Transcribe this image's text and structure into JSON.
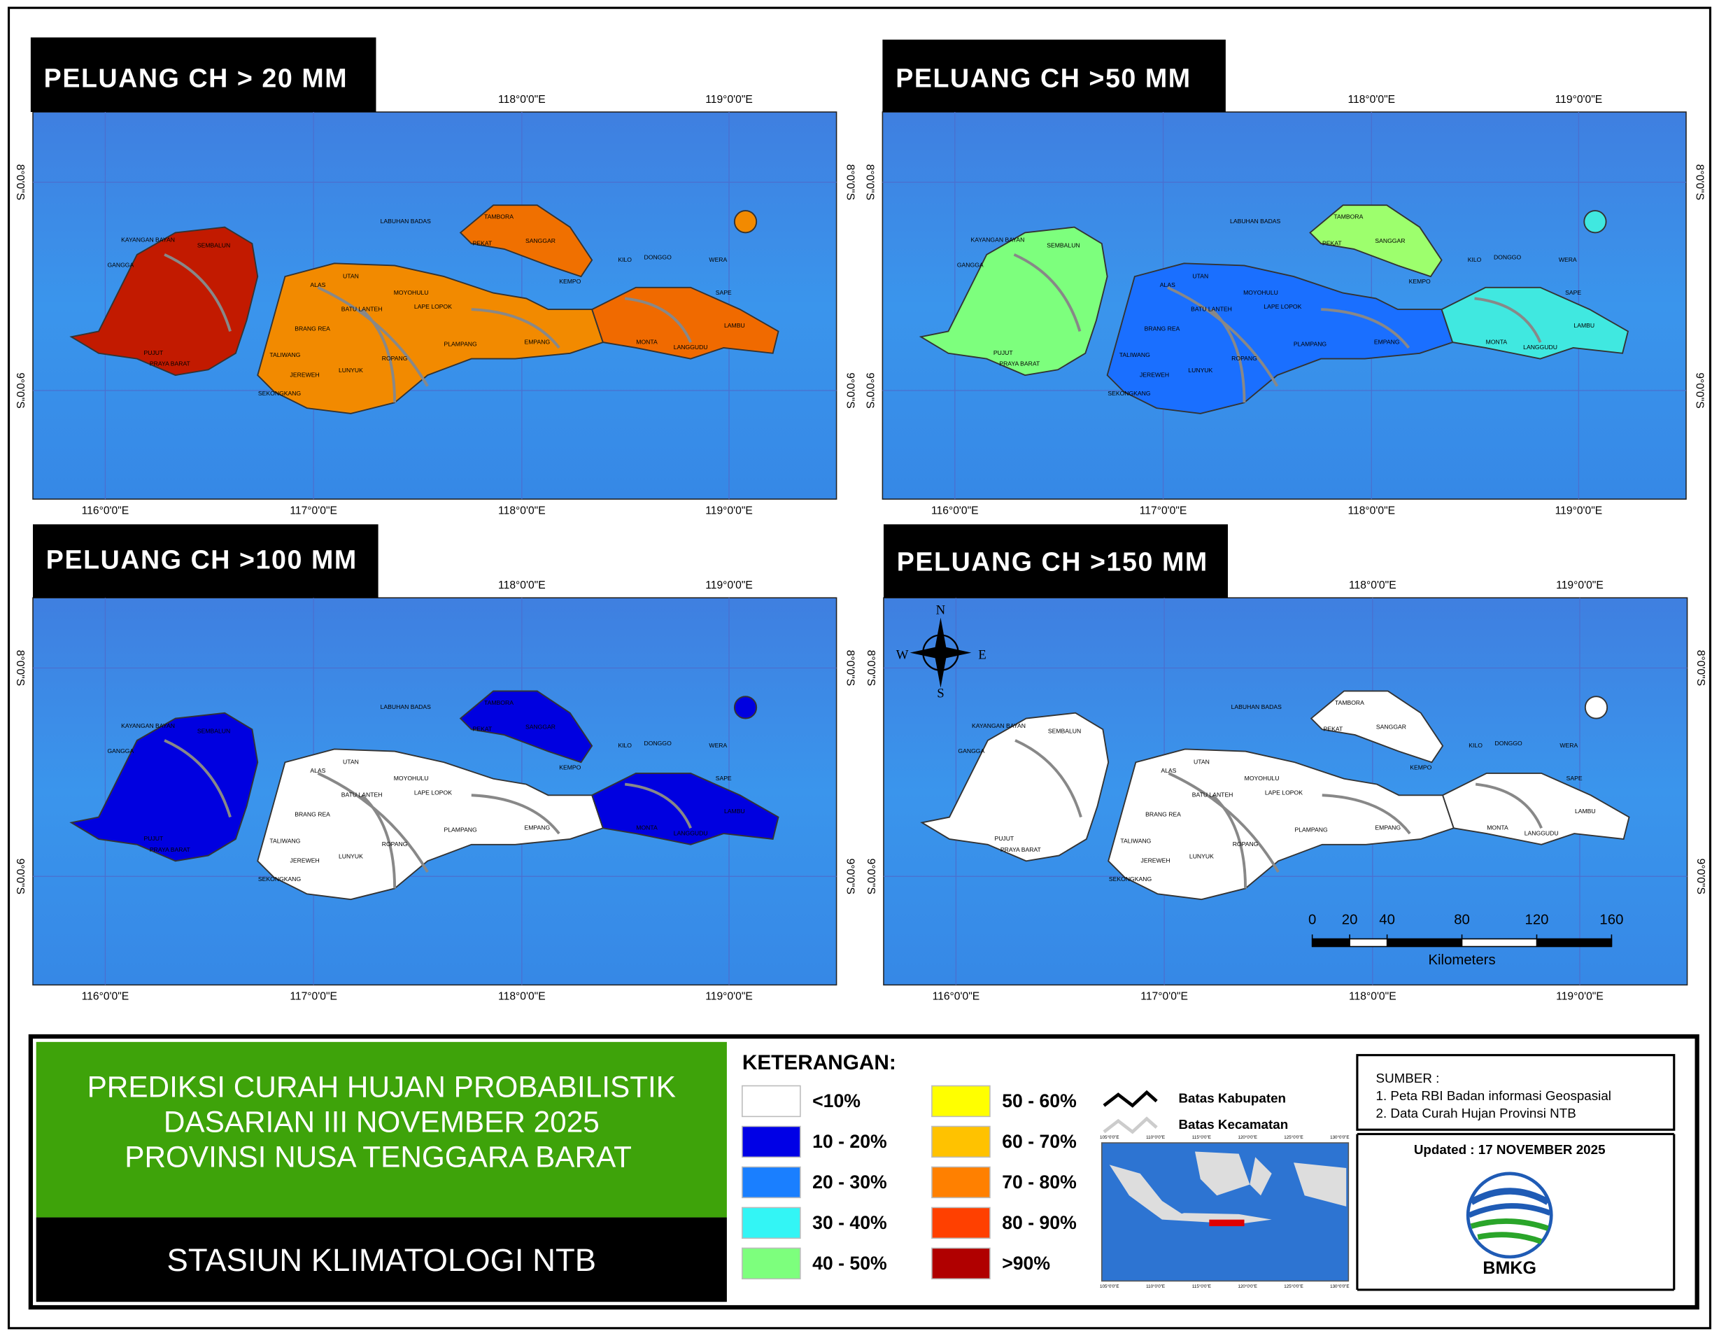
{
  "panels": [
    {
      "title": "PELUANG CH > 20 MM",
      "colors": {
        "lombok": "#c21a00",
        "west": "#f28a00",
        "east": "#f06a00",
        "peninsula": "#f07000",
        "wera": "#f28a00"
      }
    },
    {
      "title": "PELUANG CH >50 MM",
      "colors": {
        "lombok": "#7dff7d",
        "west": "#1a6fff",
        "east": "#40e8e0",
        "peninsula": "#9dff6d",
        "wera": "#40e8e0"
      }
    },
    {
      "title": "PELUANG CH >100 MM",
      "colors": {
        "lombok": "#0000e0",
        "west": "#ffffff",
        "east": "#0000e0",
        "peninsula": "#0000e0",
        "wera": "#0000e0"
      }
    },
    {
      "title": "PELUANG CH >150 MM",
      "colors": {
        "lombok": "#ffffff",
        "west": "#ffffff",
        "east": "#ffffff",
        "peninsula": "#ffffff",
        "wera": "#ffffff"
      }
    }
  ],
  "lon_labels": [
    "116°0'0\"E",
    "117°0'0\"E",
    "118°0'0\"E",
    "119°0'0\"E"
  ],
  "lat_labels": [
    "8°0'0\"S",
    "9°0'0\"S"
  ],
  "places": [
    "TAMBORA",
    "SANGGAR",
    "PEKAT",
    "KEMPO",
    "KILO",
    "DONGGO",
    "WERA",
    "LAMBU",
    "SAPE",
    "MONTA",
    "LANGGUDU",
    "EMPANG",
    "PLAMPANG",
    "ROPANG",
    "LUNYUK",
    "SEKONGKANG",
    "JEREWEH",
    "TALIWANG",
    "ALAS",
    "UTAN",
    "LABUHAN BADAS",
    "MOYOHULU",
    "LAPE LOPOK",
    "BATU LANTEH",
    "BRANG REA",
    "SEMBALUN",
    "GANGGA",
    "PUJUT",
    "PRAYA BARAT",
    "KAYANGAN BAYAN"
  ],
  "compass": {
    "n": "N",
    "s": "S",
    "e": "E",
    "w": "W"
  },
  "scale_bar": {
    "ticks": [
      0,
      20,
      40,
      80,
      120,
      160
    ],
    "unit": "Kilometers"
  },
  "title_block": {
    "lines": [
      "PREDIKSI CURAH HUJAN PROBABILISTIK",
      "DASARIAN  III NOVEMBER 2025",
      "PROVINSI NUSA TENGGARA BARAT"
    ],
    "station": "STASIUN KLIMATOLOGI NTB"
  },
  "legend": {
    "title": "KETERANGAN:",
    "classes": [
      {
        "label": "<10%",
        "color": "#ffffff"
      },
      {
        "label": "10 - 20%",
        "color": "#0000e6"
      },
      {
        "label": "20 - 30%",
        "color": "#1a7fff"
      },
      {
        "label": "30 - 40%",
        "color": "#33f5f5"
      },
      {
        "label": "40 - 50%",
        "color": "#7dff7d"
      },
      {
        "label": "50 - 60%",
        "color": "#ffff00"
      },
      {
        "label": "60 - 70%",
        "color": "#ffc200"
      },
      {
        "label": "70 - 80%",
        "color": "#ff8000"
      },
      {
        "label": "80 - 90%",
        "color": "#ff4000"
      },
      {
        "label": ">90%",
        "color": "#b00000"
      }
    ],
    "lines": [
      {
        "label": "Batas Kabupaten",
        "color": "#000000"
      },
      {
        "label": "Batas Kecamatan",
        "color": "#cccccc"
      }
    ]
  },
  "inset_lon_labels": [
    "105°0'0\"E",
    "110°0'0\"E",
    "115°0'0\"E",
    "120°0'0\"E",
    "125°0'0\"E",
    "130°0'0\"E"
  ],
  "sources": {
    "title": "SUMBER :",
    "items": [
      "1. Peta RBI Badan informasi Geospasial",
      "2. Data Curah Hujan Provinsi NTB"
    ]
  },
  "updated": "Updated : 17 NOVEMBER 2025",
  "logo_text": "BMKG"
}
